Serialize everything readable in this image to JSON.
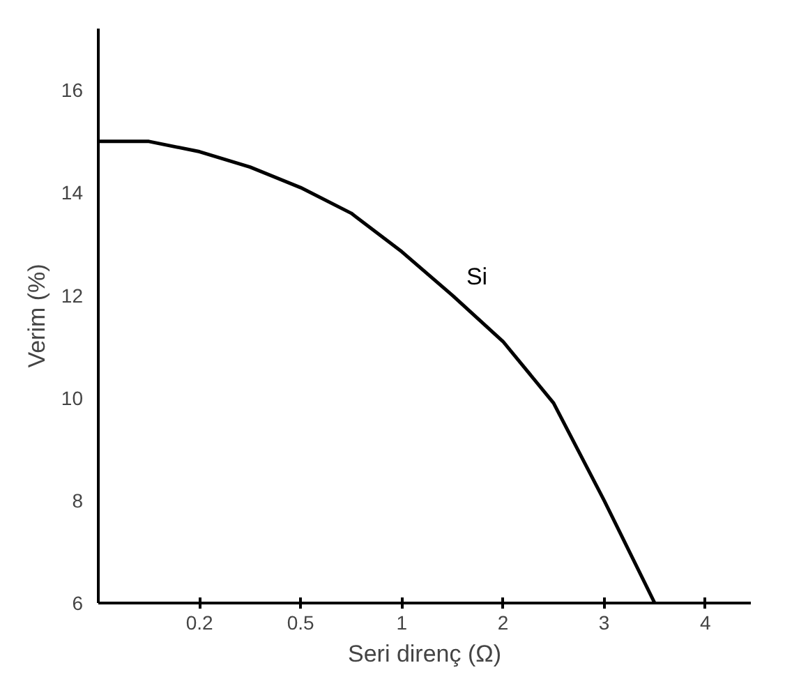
{
  "chart_data": {
    "type": "line",
    "xlabel": "Seri direnç (Ω)",
    "ylabel": "Verim (%)",
    "categories": [
      null,
      null,
      "0.2",
      null,
      "0.5",
      null,
      "1",
      null,
      "2",
      null,
      "3",
      null,
      "4"
    ],
    "ylim": [
      6,
      17.2
    ],
    "yticks": [
      6,
      8,
      10,
      12,
      14,
      16
    ],
    "grid": false,
    "marker": "none",
    "line_style": "solid",
    "series": [
      {
        "name": "Si",
        "color": "#000000",
        "values": [
          15.0,
          15.0,
          14.8,
          14.5,
          14.1,
          13.6,
          12.85,
          12.0,
          11.1,
          9.9,
          8.0,
          6.0,
          null
        ]
      }
    ]
  }
}
